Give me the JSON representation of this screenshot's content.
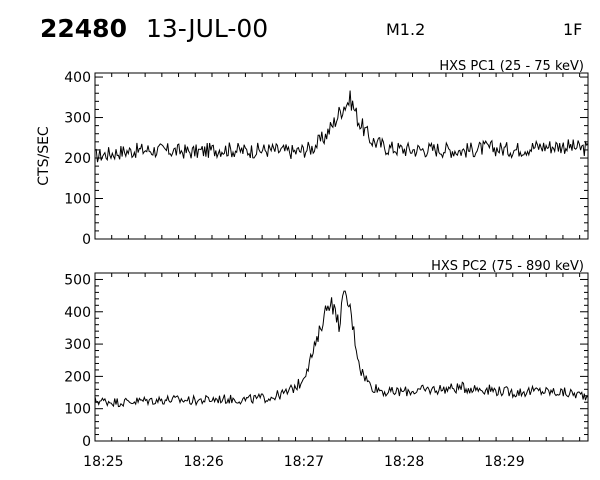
{
  "header": {
    "event_id": "22480",
    "date": "13-JUL-00",
    "flare_class": "M1.2",
    "flag": "1F"
  },
  "chart_data": [
    {
      "type": "line",
      "title": "HXS PC1 (25 - 75 keV)",
      "ylabel": "CTS/SEC",
      "xlim": [
        "18:24:55",
        "18:29:50"
      ],
      "ylim": [
        0,
        410
      ],
      "yticks": [
        "0",
        "100",
        "200",
        "300",
        "400"
      ],
      "xticks": [
        "18:25",
        "18:26",
        "18:27",
        "18:28",
        "18:29"
      ],
      "series": [
        {
          "x": [
            "18:24:55",
            "18:25:10",
            "18:25:25",
            "18:25:40",
            "18:25:55",
            "18:26:10",
            "18:26:25",
            "18:26:40",
            "18:26:55",
            "18:27:05",
            "18:27:12",
            "18:27:17",
            "18:27:21",
            "18:27:24",
            "18:27:28",
            "18:27:33",
            "18:27:40",
            "18:27:50",
            "18:28:05",
            "18:28:20",
            "18:28:35",
            "18:28:50",
            "18:29:05",
            "18:29:20",
            "18:29:35",
            "18:29:50"
          ],
          "y": [
            205,
            215,
            220,
            218,
            215,
            222,
            218,
            220,
            215,
            225,
            250,
            280,
            310,
            330,
            345,
            290,
            245,
            225,
            220,
            222,
            218,
            225,
            220,
            228,
            230,
            222
          ]
        }
      ]
    },
    {
      "type": "line",
      "title": "HXS PC2 (75 - 890 keV)",
      "ylabel": "",
      "xlim": [
        "18:24:55",
        "18:29:50"
      ],
      "ylim": [
        0,
        520
      ],
      "yticks": [
        "0",
        "100",
        "200",
        "300",
        "400",
        "500"
      ],
      "xticks": [
        "18:25",
        "18:26",
        "18:27",
        "18:28",
        "18:29"
      ],
      "series": [
        {
          "x": [
            "18:24:55",
            "18:25:10",
            "18:25:25",
            "18:25:40",
            "18:25:55",
            "18:26:10",
            "18:26:25",
            "18:26:40",
            "18:26:50",
            "18:26:58",
            "18:27:03",
            "18:27:08",
            "18:27:12",
            "18:27:16",
            "18:27:19",
            "18:27:21",
            "18:27:23",
            "18:27:25",
            "18:27:28",
            "18:27:31",
            "18:27:34",
            "18:27:40",
            "18:27:50",
            "18:28:05",
            "18:28:20",
            "18:28:35",
            "18:28:50",
            "18:29:05",
            "18:29:20",
            "18:29:35",
            "18:29:50"
          ],
          "y": [
            125,
            120,
            125,
            128,
            125,
            130,
            128,
            135,
            150,
            180,
            240,
            310,
            390,
            440,
            390,
            360,
            430,
            450,
            400,
            300,
            220,
            170,
            150,
            155,
            160,
            165,
            160,
            150,
            155,
            150,
            140
          ]
        }
      ]
    }
  ]
}
